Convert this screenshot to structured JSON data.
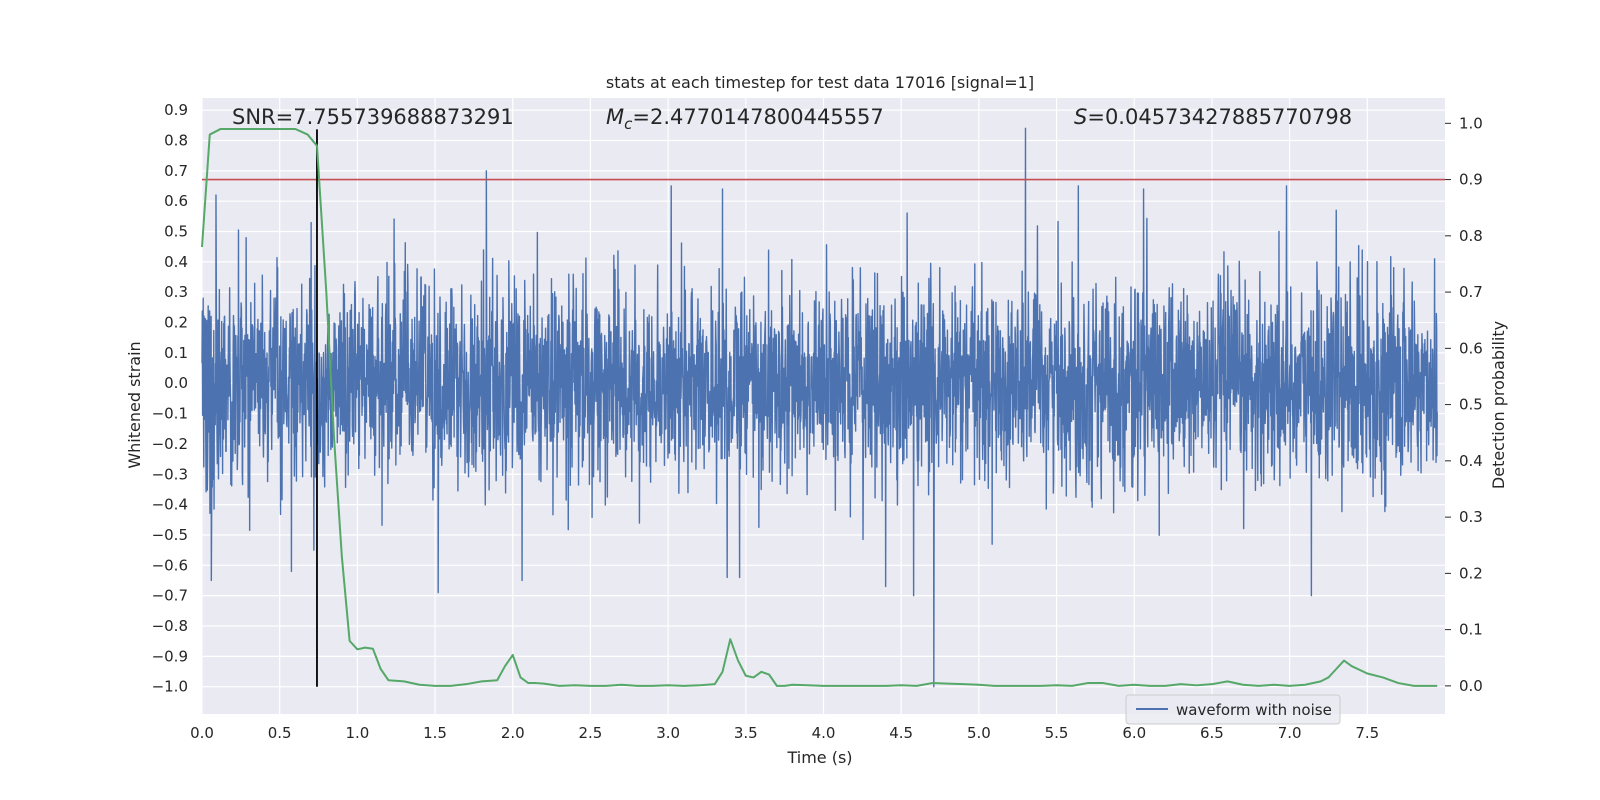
{
  "chart_data": {
    "type": "line",
    "title": "stats at each timestep for test data 17016 [signal=1]",
    "xlabel": "Time (s)",
    "ylabel_left": "Whitened strain",
    "ylabel_right": "Detection probability",
    "xlim": [
      0,
      8
    ],
    "ylim_left": [
      -1.09,
      0.94
    ],
    "ylim_right": [
      -0.05,
      1.045
    ],
    "x_ticks": [
      0.0,
      0.5,
      1.0,
      1.5,
      2.0,
      2.5,
      3.0,
      3.5,
      4.0,
      4.5,
      5.0,
      5.5,
      6.0,
      6.5,
      7.0,
      7.5
    ],
    "x_tick_labels": [
      "0.0",
      "0.5",
      "1.0",
      "1.5",
      "2.0",
      "2.5",
      "3.0",
      "3.5",
      "4.0",
      "4.5",
      "5.0",
      "5.5",
      "6.0",
      "6.5",
      "7.0",
      "7.5"
    ],
    "y_left_ticks": [
      0.9,
      0.8,
      0.7,
      0.6,
      0.5,
      0.4,
      0.3,
      0.2,
      0.1,
      0.0,
      -0.1,
      -0.2,
      -0.3,
      -0.4,
      -0.5,
      -0.6,
      -0.7,
      -0.8,
      -0.9,
      -1.0
    ],
    "y_left_tick_labels": [
      "0.9",
      "0.8",
      "0.7",
      "0.6",
      "0.5",
      "0.4",
      "0.3",
      "0.2",
      "0.1",
      "0.0",
      "−0.1",
      "−0.2",
      "−0.3",
      "−0.4",
      "−0.5",
      "−0.6",
      "−0.7",
      "−0.8",
      "−0.9",
      "−1.0"
    ],
    "y_right_ticks": [
      1.0,
      0.9,
      0.8,
      0.7,
      0.6,
      0.5,
      0.4,
      0.3,
      0.2,
      0.1,
      0.0
    ],
    "y_right_tick_labels": [
      "1.0",
      "0.9",
      "0.8",
      "0.7",
      "0.6",
      "0.5",
      "0.4",
      "0.3",
      "0.2",
      "0.1",
      "0.0"
    ],
    "grid": true,
    "legend": {
      "position": "lower-right",
      "entries": [
        "waveform with noise"
      ]
    },
    "annotations": {
      "snr": "SNR=7.755739688873291",
      "mc_symbol": "M",
      "mc_sub": "c",
      "mc_value": "=2.4770147800445557",
      "s_symbol": "S",
      "s_value": "=0.04573427885770798"
    },
    "threshold_probability": 0.9,
    "detection_time": 0.74,
    "waveform": {
      "name": "waveform with noise",
      "color": "#4c72b0",
      "typical_envelope": 0.29,
      "seed": 17016,
      "notable_peaks": [
        {
          "x": 0.06,
          "y": -0.65
        },
        {
          "x": 0.09,
          "y": 0.62
        },
        {
          "x": 0.72,
          "y": -0.55
        },
        {
          "x": 1.52,
          "y": -0.69
        },
        {
          "x": 1.83,
          "y": 0.7
        },
        {
          "x": 2.06,
          "y": -0.65
        },
        {
          "x": 3.02,
          "y": 0.65
        },
        {
          "x": 3.35,
          "y": 0.64
        },
        {
          "x": 3.38,
          "y": -0.64
        },
        {
          "x": 3.46,
          "y": -0.64
        },
        {
          "x": 4.4,
          "y": -0.67
        },
        {
          "x": 4.58,
          "y": -0.7
        },
        {
          "x": 4.71,
          "y": -1.0
        },
        {
          "x": 5.3,
          "y": 0.84
        },
        {
          "x": 5.64,
          "y": 0.65
        },
        {
          "x": 6.06,
          "y": 0.64
        },
        {
          "x": 6.98,
          "y": 0.65
        },
        {
          "x": 7.14,
          "y": -0.7
        },
        {
          "x": 7.3,
          "y": 0.57
        }
      ]
    },
    "probability": {
      "name": "detection probability",
      "color": "#55a868",
      "x": [
        0.0,
        0.05,
        0.12,
        0.2,
        0.3,
        0.4,
        0.5,
        0.6,
        0.68,
        0.74,
        0.8,
        0.85,
        0.9,
        0.95,
        1.0,
        1.05,
        1.1,
        1.15,
        1.2,
        1.3,
        1.4,
        1.5,
        1.6,
        1.7,
        1.8,
        1.9,
        1.95,
        2.0,
        2.05,
        2.1,
        2.15,
        2.2,
        2.3,
        2.4,
        2.5,
        2.6,
        2.7,
        2.8,
        2.9,
        3.0,
        3.1,
        3.2,
        3.3,
        3.35,
        3.4,
        3.45,
        3.5,
        3.55,
        3.6,
        3.65,
        3.7,
        3.75,
        3.8,
        3.9,
        4.0,
        4.1,
        4.2,
        4.3,
        4.4,
        4.5,
        4.6,
        4.7,
        4.8,
        4.9,
        5.0,
        5.1,
        5.2,
        5.3,
        5.4,
        5.5,
        5.6,
        5.7,
        5.8,
        5.9,
        6.0,
        6.1,
        6.2,
        6.3,
        6.4,
        6.5,
        6.6,
        6.7,
        6.8,
        6.9,
        7.0,
        7.1,
        7.2,
        7.25,
        7.3,
        7.35,
        7.4,
        7.5,
        7.6,
        7.7,
        7.8,
        7.95
      ],
      "y": [
        0.78,
        0.98,
        0.99,
        0.99,
        0.99,
        0.99,
        0.99,
        0.99,
        0.98,
        0.96,
        0.7,
        0.44,
        0.23,
        0.08,
        0.065,
        0.068,
        0.066,
        0.03,
        0.01,
        0.008,
        0.002,
        0.0,
        0.0,
        0.003,
        0.008,
        0.01,
        0.035,
        0.055,
        0.015,
        0.005,
        0.005,
        0.004,
        0.0,
        0.001,
        0.0,
        0.0,
        0.002,
        0.0,
        0.0,
        0.001,
        0.0,
        0.001,
        0.003,
        0.025,
        0.083,
        0.045,
        0.018,
        0.015,
        0.025,
        0.02,
        0.0,
        0.0,
        0.002,
        0.001,
        0.0,
        0.0,
        0.0,
        0.0,
        0.0,
        0.001,
        0.0,
        0.005,
        0.004,
        0.003,
        0.002,
        0.0,
        0.0,
        0.0,
        0.0,
        0.001,
        0.0,
        0.005,
        0.005,
        0.0,
        0.002,
        0.0,
        0.0,
        0.003,
        0.001,
        0.003,
        0.008,
        0.002,
        0.0,
        0.002,
        0.0,
        0.002,
        0.008,
        0.015,
        0.03,
        0.045,
        0.035,
        0.022,
        0.015,
        0.005,
        0.0,
        0.0
      ]
    },
    "colors": {
      "background": "#eaeaf2",
      "grid": "#ffffff",
      "threshold": "#c44e52",
      "marker": "#000000"
    }
  }
}
